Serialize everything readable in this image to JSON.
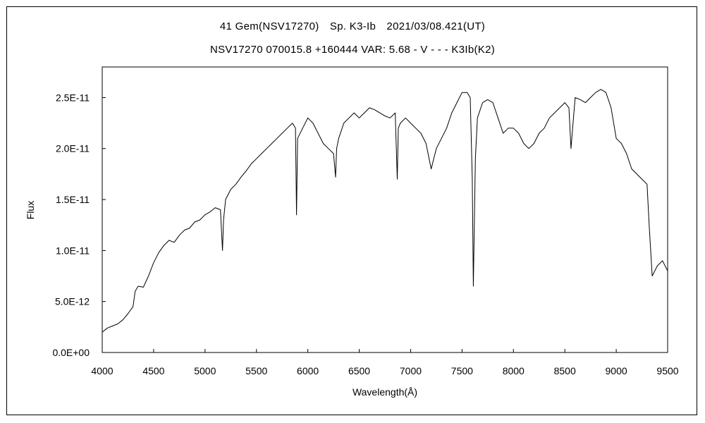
{
  "chart_data": {
    "type": "line",
    "title": "41 Gem(NSV17270)　Sp. K3-Ib　2021/03/08.421(UT)",
    "subtitle": "NSV17270 070015.8 +160444 VAR: 5.68 - V - - - K3Ib(K2)",
    "xlabel": "Wavelength(Å)",
    "ylabel": "Flux",
    "xlim": [
      4000,
      9500
    ],
    "ylim": [
      0,
      2.8e-11
    ],
    "grid": false,
    "xticks": [
      4000,
      4500,
      5000,
      5500,
      6000,
      6500,
      7000,
      7500,
      8000,
      8500,
      9000,
      9500
    ],
    "xtick_labels": [
      "4000",
      "4500",
      "5000",
      "5500",
      "6000",
      "6500",
      "7000",
      "7500",
      "8000",
      "8500",
      "9000",
      "9500"
    ],
    "yticks": [
      0,
      5e-12,
      1e-11,
      1.5e-11,
      2e-11,
      2.5e-11
    ],
    "ytick_labels": [
      "0.0E+00",
      "5.0E-12",
      "1.0E-11",
      "1.5E-11",
      "2.0E-11",
      "2.5E-11"
    ],
    "series": [
      {
        "name": "",
        "x": [
          4000,
          4050,
          4100,
          4150,
          4200,
          4250,
          4300,
          4320,
          4350,
          4400,
          4450,
          4500,
          4550,
          4600,
          4650,
          4700,
          4750,
          4800,
          4850,
          4900,
          4950,
          5000,
          5050,
          5100,
          5150,
          5170,
          5180,
          5200,
          5250,
          5300,
          5350,
          5400,
          5450,
          5500,
          5550,
          5600,
          5650,
          5700,
          5750,
          5800,
          5850,
          5880,
          5890,
          5900,
          5950,
          6000,
          6050,
          6100,
          6150,
          6200,
          6250,
          6270,
          6280,
          6300,
          6350,
          6400,
          6450,
          6500,
          6550,
          6600,
          6650,
          6700,
          6750,
          6800,
          6850,
          6870,
          6880,
          6900,
          6950,
          7000,
          7050,
          7100,
          7150,
          7200,
          7250,
          7300,
          7350,
          7400,
          7450,
          7500,
          7550,
          7580,
          7600,
          7610,
          7630,
          7650,
          7700,
          7750,
          7800,
          7850,
          7900,
          7950,
          8000,
          8050,
          8100,
          8150,
          8200,
          8250,
          8300,
          8350,
          8400,
          8450,
          8500,
          8540,
          8560,
          8600,
          8650,
          8700,
          8750,
          8800,
          8850,
          8900,
          8950,
          9000,
          9050,
          9100,
          9150,
          9200,
          9250,
          9300,
          9320,
          9350,
          9400,
          9450,
          9500
        ],
        "y": [
          2e-12,
          2.4e-12,
          2.6e-12,
          2.8e-12,
          3.2e-12,
          3.8e-12,
          4.5e-12,
          6e-12,
          6.5e-12,
          6.4e-12,
          7.5e-12,
          8.8e-12,
          9.8e-12,
          1.05e-11,
          1.1e-11,
          1.08e-11,
          1.15e-11,
          1.2e-11,
          1.22e-11,
          1.28e-11,
          1.3e-11,
          1.35e-11,
          1.38e-11,
          1.42e-11,
          1.4e-11,
          1e-11,
          1.3e-11,
          1.5e-11,
          1.6e-11,
          1.65e-11,
          1.72e-11,
          1.78e-11,
          1.85e-11,
          1.9e-11,
          1.95e-11,
          2e-11,
          2.05e-11,
          2.1e-11,
          2.15e-11,
          2.2e-11,
          2.25e-11,
          2.2e-11,
          1.35e-11,
          2.1e-11,
          2.2e-11,
          2.3e-11,
          2.25e-11,
          2.15e-11,
          2.05e-11,
          2e-11,
          1.95e-11,
          1.72e-11,
          2e-11,
          2.1e-11,
          2.25e-11,
          2.3e-11,
          2.35e-11,
          2.3e-11,
          2.35e-11,
          2.4e-11,
          2.38e-11,
          2.35e-11,
          2.32e-11,
          2.3e-11,
          2.35e-11,
          1.7e-11,
          2.2e-11,
          2.25e-11,
          2.3e-11,
          2.25e-11,
          2.2e-11,
          2.15e-11,
          2.05e-11,
          1.8e-11,
          2e-11,
          2.1e-11,
          2.2e-11,
          2.35e-11,
          2.45e-11,
          2.55e-11,
          2.55e-11,
          2.5e-11,
          1.7e-11,
          6.5e-12,
          1.9e-11,
          2.3e-11,
          2.45e-11,
          2.48e-11,
          2.45e-11,
          2.3e-11,
          2.15e-11,
          2.2e-11,
          2.2e-11,
          2.15e-11,
          2.05e-11,
          2e-11,
          2.05e-11,
          2.15e-11,
          2.2e-11,
          2.3e-11,
          2.35e-11,
          2.4e-11,
          2.45e-11,
          2.4e-11,
          2e-11,
          2.5e-11,
          2.48e-11,
          2.45e-11,
          2.5e-11,
          2.55e-11,
          2.58e-11,
          2.55e-11,
          2.4e-11,
          2.1e-11,
          2.05e-11,
          1.95e-11,
          1.8e-11,
          1.75e-11,
          1.7e-11,
          1.65e-11,
          1.25e-11,
          7.5e-12,
          8.5e-12,
          9e-12,
          8e-12
        ]
      }
    ]
  }
}
